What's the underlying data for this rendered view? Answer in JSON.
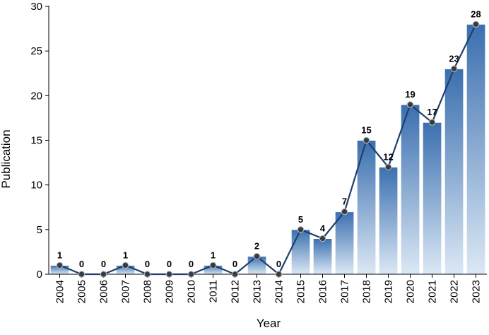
{
  "chart_data": {
    "type": "bar",
    "title": "",
    "xlabel": "Year",
    "ylabel": "Publication",
    "ylim": [
      0,
      30
    ],
    "yticks": [
      0,
      5,
      10,
      15,
      20,
      25,
      30
    ],
    "grid": false,
    "legend": "none",
    "categories": [
      "2004",
      "2005",
      "2006",
      "2007",
      "2008",
      "2009",
      "2010",
      "2011",
      "2012",
      "2013",
      "2014",
      "2015",
      "2016",
      "2017",
      "2018",
      "2019",
      "2020",
      "2021",
      "2022",
      "2023"
    ],
    "series": [
      {
        "values": [
          1,
          0,
          0,
          1,
          0,
          0,
          0,
          1,
          0,
          2,
          0,
          5,
          4,
          7,
          15,
          12,
          19,
          17,
          23,
          28
        ],
        "render": "bar+line"
      }
    ],
    "colors": {
      "bar_top": "#3a6faf",
      "bar_bottom": "#dce8f5",
      "line": "#1f3f6a",
      "marker": "#3a3a3a"
    }
  }
}
